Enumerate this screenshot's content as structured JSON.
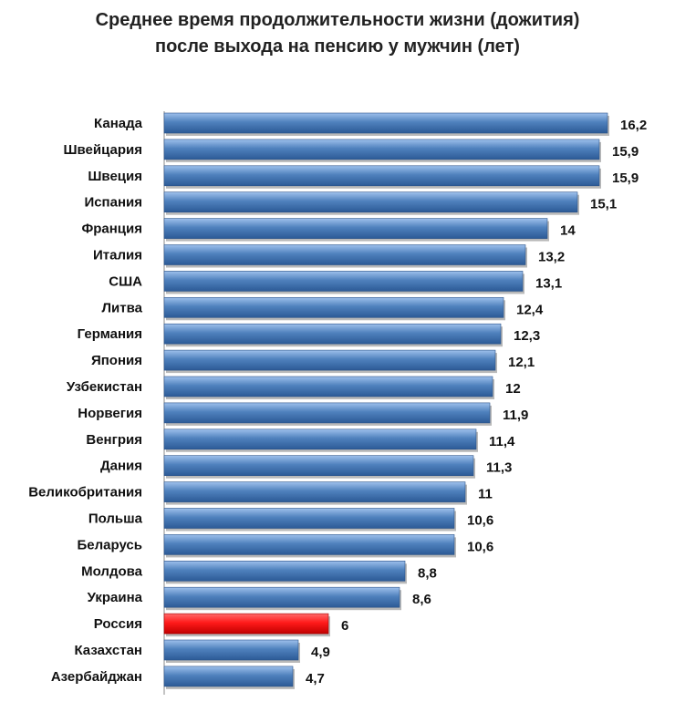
{
  "chart_data": {
    "type": "bar",
    "orientation": "horizontal",
    "title": "Среднее время продолжительности жизни (дожития)",
    "subtitle": "после выхода на пенсию у мужчин (лет)",
    "categories": [
      "Канада",
      "Швейцария",
      "Швеция",
      "Испания",
      "Франция",
      "Италия",
      "США",
      "Литва",
      "Германия",
      "Япония",
      "Узбекистан",
      "Норвегия",
      "Венгрия",
      "Дания",
      "Великобритания",
      "Польша",
      "Беларусь",
      "Молдова",
      "Украина",
      "Россия",
      "Казахстан",
      "Азербайджан"
    ],
    "values": [
      16.2,
      15.9,
      15.9,
      15.1,
      14,
      13.2,
      13.1,
      12.4,
      12.3,
      12.1,
      12,
      11.9,
      11.4,
      11.3,
      11,
      10.6,
      10.6,
      8.8,
      8.6,
      6,
      4.9,
      4.7
    ],
    "value_labels": [
      "16,2",
      "15,9",
      "15,9",
      "15,1",
      "14",
      "13,2",
      "13,1",
      "12,4",
      "12,3",
      "12,1",
      "12",
      "11,9",
      "11,4",
      "11,3",
      "11",
      "10,6",
      "10,6",
      "8,8",
      "8,6",
      "6",
      "4,9",
      "4,7"
    ],
    "highlight_category": "Россия",
    "colors": {
      "bar": "#4f81bd",
      "highlight": "#ff1a1a"
    },
    "xlim": [
      0,
      16.2
    ],
    "grid": false,
    "legend": "none"
  }
}
